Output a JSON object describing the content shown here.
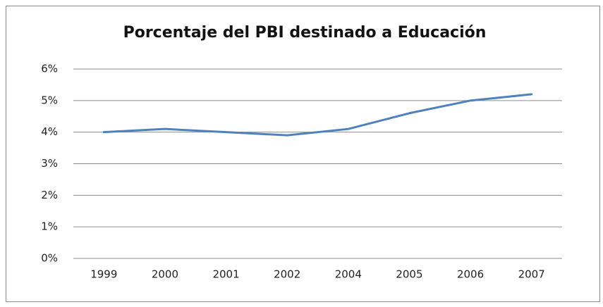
{
  "chart_data": {
    "type": "line",
    "title": "Porcentaje del PBI destinado a Educación",
    "categories": [
      "1999",
      "2000",
      "2001",
      "2002",
      "2004",
      "2005",
      "2006",
      "2007"
    ],
    "series": [
      {
        "color": "#4f81bd",
        "values": [
          4.0,
          4.1,
          4.0,
          3.9,
          4.1,
          4.6,
          5.0,
          5.2
        ]
      }
    ],
    "ylim": [
      0,
      6
    ],
    "yticks": [
      {
        "value": 0,
        "label": "0%"
      },
      {
        "value": 1,
        "label": "1%"
      },
      {
        "value": 2,
        "label": "2%"
      },
      {
        "value": 3,
        "label": "3%"
      },
      {
        "value": 4,
        "label": "4%"
      },
      {
        "value": 5,
        "label": "5%"
      },
      {
        "value": 6,
        "label": "6%"
      }
    ],
    "grid": true
  }
}
